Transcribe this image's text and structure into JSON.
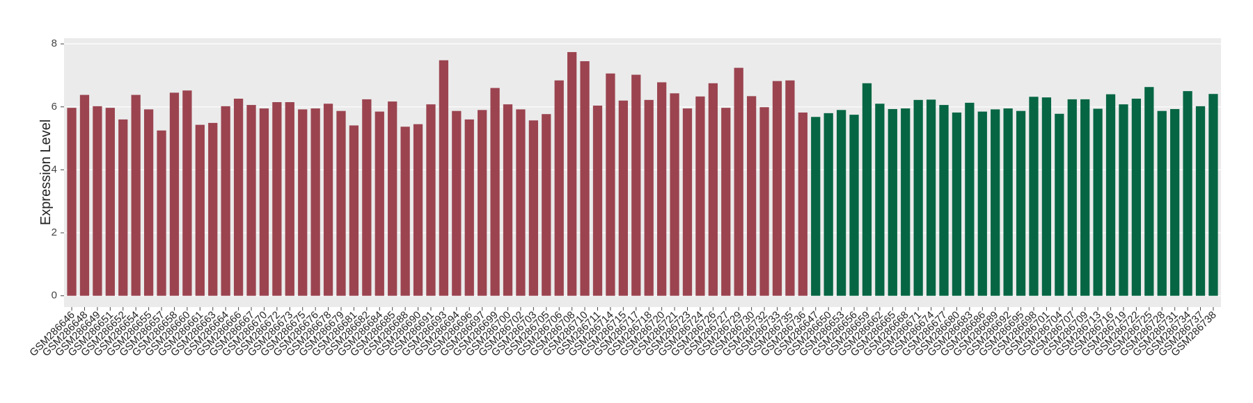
{
  "chart_data": {
    "type": "bar",
    "y_label": "Expression Level",
    "categories": [
      "GSM286646",
      "GSM286648",
      "GSM286649",
      "GSM286651",
      "GSM286652",
      "GSM286654",
      "GSM286655",
      "GSM286657",
      "GSM286658",
      "GSM286660",
      "GSM286661",
      "GSM286663",
      "GSM286664",
      "GSM286666",
      "GSM286667",
      "GSM286670",
      "GSM286672",
      "GSM286673",
      "GSM286675",
      "GSM286676",
      "GSM286678",
      "GSM286679",
      "GSM286681",
      "GSM286682",
      "GSM286684",
      "GSM286685",
      "GSM286688",
      "GSM286690",
      "GSM286691",
      "GSM286693",
      "GSM286694",
      "GSM286696",
      "GSM286697",
      "GSM286699",
      "GSM286700",
      "GSM286702",
      "GSM286703",
      "GSM286705",
      "GSM286706",
      "GSM286708",
      "GSM286710",
      "GSM286711",
      "GSM286714",
      "GSM286715",
      "GSM286717",
      "GSM286718",
      "GSM286720",
      "GSM286721",
      "GSM286723",
      "GSM286724",
      "GSM286726",
      "GSM286727",
      "GSM286729",
      "GSM286730",
      "GSM286732",
      "GSM286733",
      "GSM286735",
      "GSM286736",
      "GSM286647",
      "GSM286650",
      "GSM286653",
      "GSM286656",
      "GSM286659",
      "GSM286662",
      "GSM286665",
      "GSM286668",
      "GSM286671",
      "GSM286674",
      "GSM286677",
      "GSM286680",
      "GSM286683",
      "GSM286686",
      "GSM286689",
      "GSM286692",
      "GSM286695",
      "GSM286698",
      "GSM286701",
      "GSM286704",
      "GSM286707",
      "GSM286709",
      "GSM286713",
      "GSM286716",
      "GSM286719",
      "GSM286722",
      "GSM286725",
      "GSM286728",
      "GSM286731",
      "GSM286734",
      "GSM286737",
      "GSM286738"
    ],
    "values": [
      5.97,
      6.38,
      6.02,
      5.97,
      5.6,
      6.38,
      5.92,
      5.25,
      6.45,
      6.52,
      5.43,
      5.49,
      6.02,
      6.26,
      6.06,
      5.95,
      6.15,
      6.15,
      5.92,
      5.95,
      6.1,
      5.87,
      5.41,
      6.24,
      5.85,
      6.17,
      5.37,
      5.45,
      6.08,
      7.48,
      5.87,
      5.6,
      5.9,
      6.6,
      6.08,
      5.92,
      5.57,
      5.77,
      6.84,
      7.74,
      7.45,
      6.04,
      7.06,
      6.2,
      7.02,
      6.22,
      6.78,
      6.43,
      5.95,
      6.33,
      6.75,
      5.97,
      7.24,
      6.34,
      5.99,
      6.82,
      6.84,
      5.82,
      5.68,
      5.8,
      5.9,
      5.75,
      6.75,
      6.1,
      5.93,
      5.95,
      6.22,
      6.23,
      6.06,
      5.82,
      6.13,
      5.85,
      5.92,
      5.95,
      5.87,
      6.32,
      6.3,
      5.78,
      6.24,
      6.24,
      5.94,
      6.4,
      6.08,
      6.26,
      6.63,
      5.87,
      5.93,
      6.5,
      6.02,
      6.41
    ],
    "colors": [
      "#9b4450",
      "#9b4450",
      "#9b4450",
      "#9b4450",
      "#9b4450",
      "#9b4450",
      "#9b4450",
      "#9b4450",
      "#9b4450",
      "#9b4450",
      "#9b4450",
      "#9b4450",
      "#9b4450",
      "#9b4450",
      "#9b4450",
      "#9b4450",
      "#9b4450",
      "#9b4450",
      "#9b4450",
      "#9b4450",
      "#9b4450",
      "#9b4450",
      "#9b4450",
      "#9b4450",
      "#9b4450",
      "#9b4450",
      "#9b4450",
      "#9b4450",
      "#9b4450",
      "#9b4450",
      "#9b4450",
      "#9b4450",
      "#9b4450",
      "#9b4450",
      "#9b4450",
      "#9b4450",
      "#9b4450",
      "#9b4450",
      "#9b4450",
      "#9b4450",
      "#9b4450",
      "#9b4450",
      "#9b4450",
      "#9b4450",
      "#9b4450",
      "#9b4450",
      "#9b4450",
      "#9b4450",
      "#9b4450",
      "#9b4450",
      "#9b4450",
      "#9b4450",
      "#9b4450",
      "#9b4450",
      "#9b4450",
      "#9b4450",
      "#9b4450",
      "#9b4450",
      "#066644",
      "#066644",
      "#066644",
      "#066644",
      "#066644",
      "#066644",
      "#066644",
      "#066644",
      "#066644",
      "#066644",
      "#066644",
      "#066644",
      "#066644",
      "#066644",
      "#066644",
      "#066644",
      "#066644",
      "#066644",
      "#066644",
      "#066644",
      "#066644",
      "#066644",
      "#066644",
      "#066644",
      "#066644",
      "#066644",
      "#066644",
      "#066644",
      "#066644",
      "#066644",
      "#066644",
      "#066644"
    ],
    "ylim": [
      -0.36,
      8.18
    ],
    "yticks": [
      0,
      2,
      4,
      6,
      8
    ],
    "grid": true
  }
}
